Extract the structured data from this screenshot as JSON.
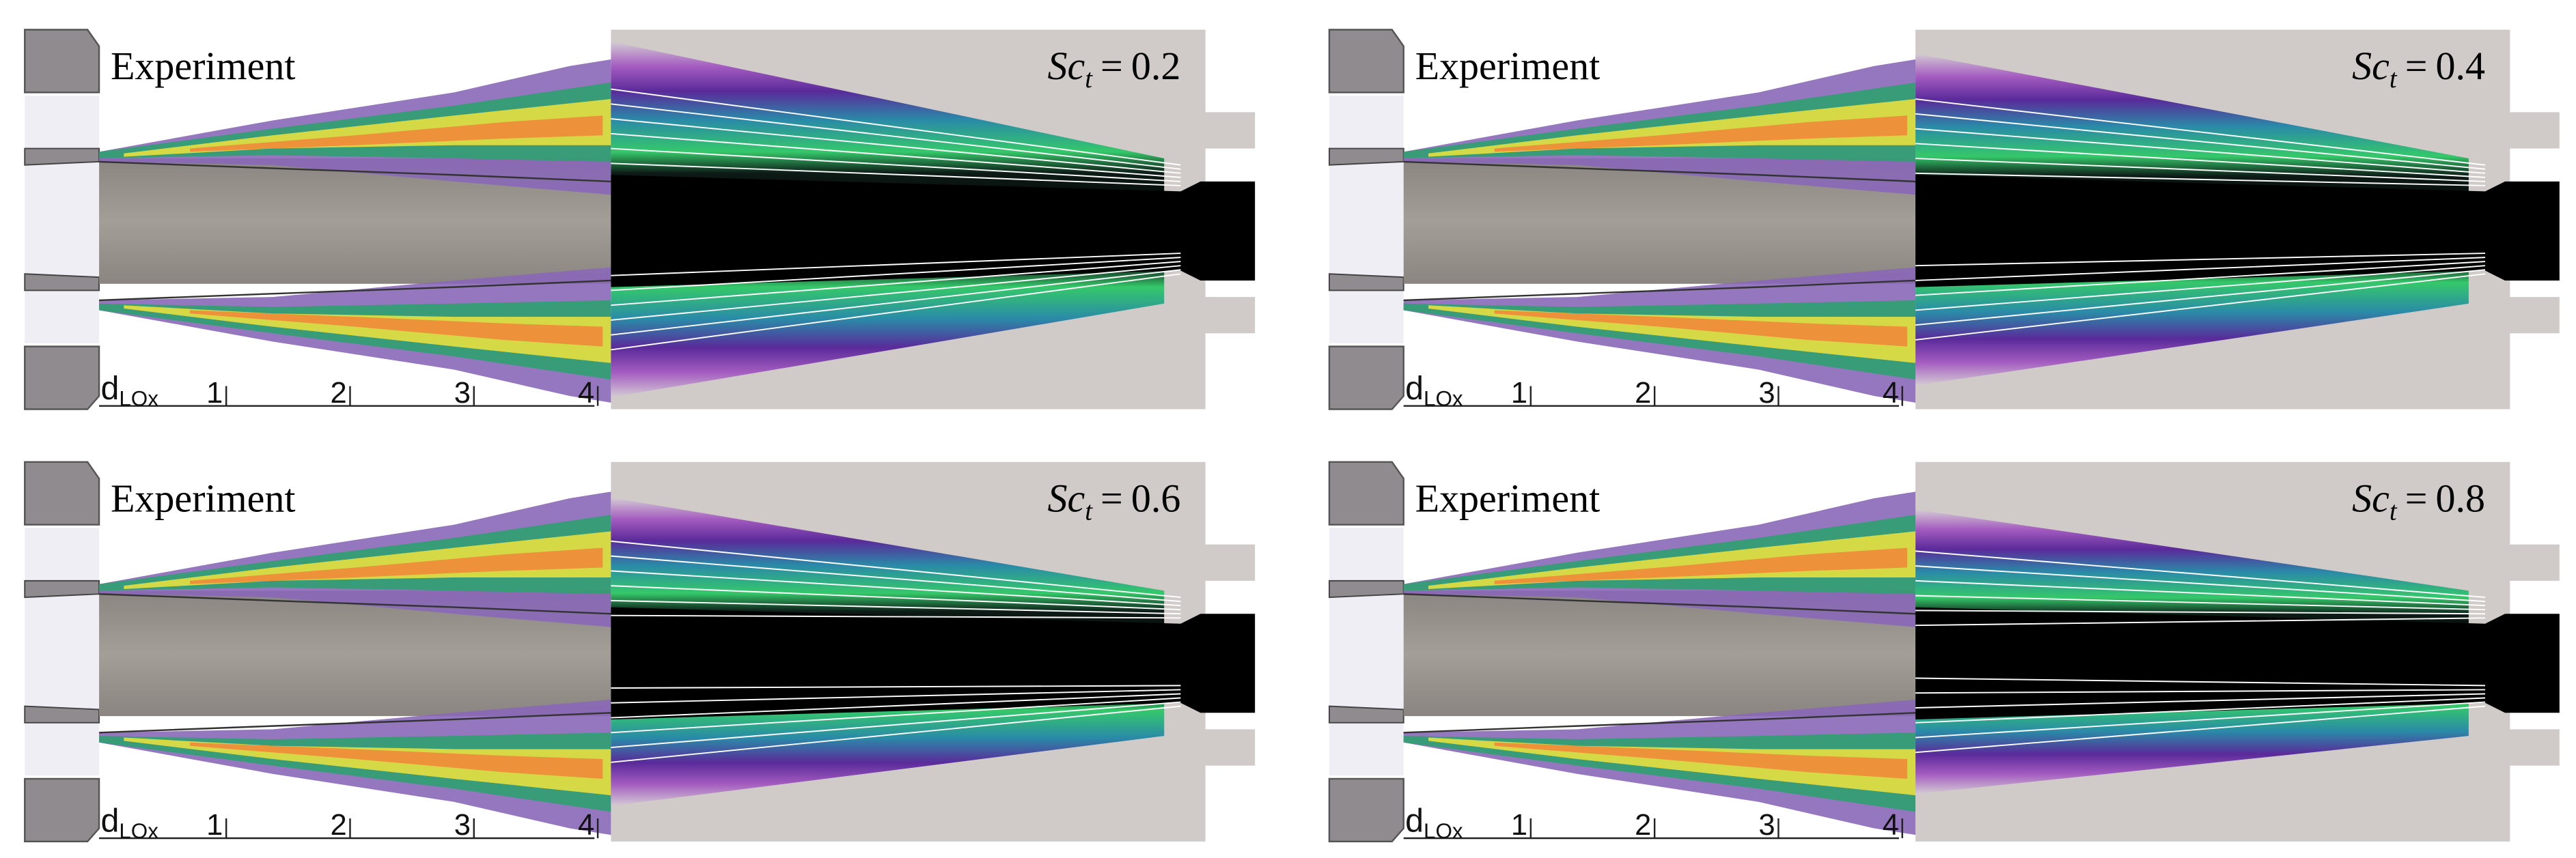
{
  "panels": [
    {
      "experiment_label": "Experiment",
      "scale": {
        "symbol": "d",
        "subscript": "LOx",
        "ticks": [
          "1",
          "2",
          "3",
          "4"
        ]
      },
      "simulation": {
        "symbol": "Sc",
        "subscript": "t",
        "relation": "=",
        "value": 0.2
      }
    },
    {
      "experiment_label": "Experiment",
      "scale": {
        "symbol": "d",
        "subscript": "LOx",
        "ticks": [
          "1",
          "2",
          "3",
          "4"
        ]
      },
      "simulation": {
        "symbol": "Sc",
        "subscript": "t",
        "relation": "=",
        "value": 0.4
      }
    },
    {
      "experiment_label": "Experiment",
      "scale": {
        "symbol": "d",
        "subscript": "LOx",
        "ticks": [
          "1",
          "2",
          "3",
          "4"
        ]
      },
      "simulation": {
        "symbol": "Sc",
        "subscript": "t",
        "relation": "=",
        "value": 0.6
      }
    },
    {
      "experiment_label": "Experiment",
      "scale": {
        "symbol": "d",
        "subscript": "LOx",
        "ticks": [
          "1",
          "2",
          "3",
          "4"
        ]
      },
      "simulation": {
        "symbol": "Sc",
        "subscript": "t",
        "relation": "=",
        "value": 0.8
      }
    }
  ]
}
